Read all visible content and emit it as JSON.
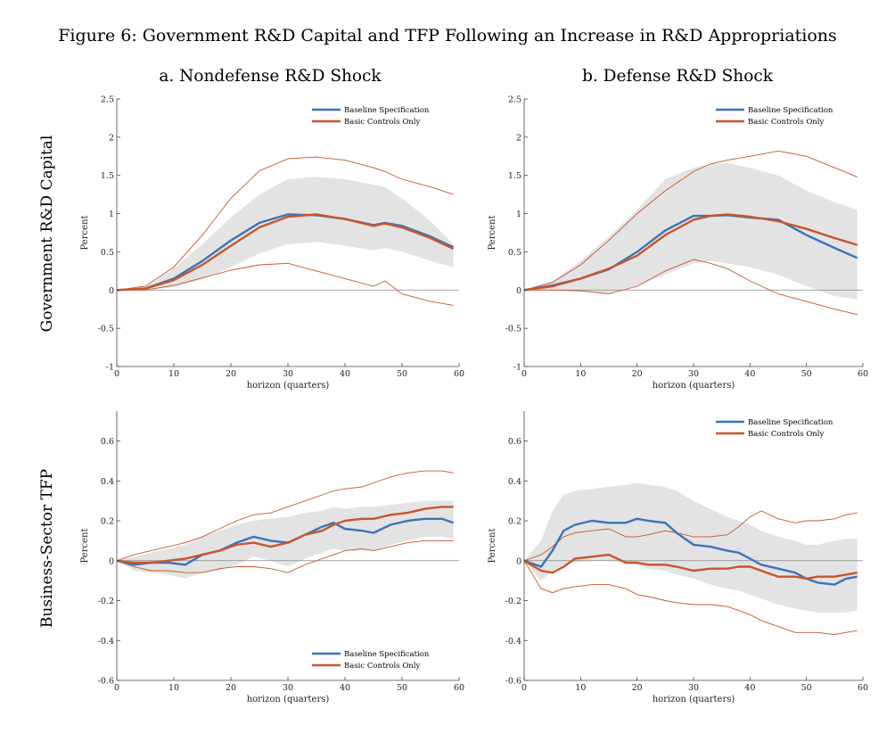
{
  "figure": {
    "title": "Figure 6: Government R&D Capital and TFP Following an Increase in R&D Appropriations",
    "columns": [
      "a. Nondefense R&D Shock",
      "b. Defense R&D Shock"
    ],
    "rows": [
      "Government R&D Capital",
      "Business-Sector TFP"
    ]
  },
  "colors": {
    "baseline": "#3b73b9",
    "basic": "#c8552b",
    "band": "#e3e3e3",
    "zero": "#888888",
    "axis": "#444444"
  },
  "chart_data": [
    {
      "id": "gov-nondefense",
      "type": "line",
      "xlabel": "horizon (quarters)",
      "ylabel": "Percent",
      "xlim": [
        0,
        60
      ],
      "ylim": [
        -1,
        2.5
      ],
      "xticks": [
        0,
        10,
        20,
        30,
        40,
        50,
        60
      ],
      "yticks": [
        -1,
        -0.5,
        0,
        0.5,
        1,
        1.5,
        2,
        2.5
      ],
      "ytick_labels": [
        "-1",
        "-0.5",
        "0",
        "0.5",
        "1",
        "1.5",
        "2",
        "2.5"
      ],
      "legend": "top-right",
      "x": [
        0,
        5,
        10,
        15,
        20,
        25,
        30,
        35,
        40,
        45,
        47,
        50,
        55,
        59
      ],
      "series": [
        {
          "name": "Baseline Specification",
          "values": [
            0,
            0.02,
            0.15,
            0.38,
            0.65,
            0.88,
            0.99,
            0.98,
            0.93,
            0.85,
            0.88,
            0.84,
            0.7,
            0.56
          ]
        },
        {
          "name": "Basic Controls Only",
          "values": [
            0,
            0.02,
            0.13,
            0.33,
            0.58,
            0.82,
            0.96,
            0.99,
            0.93,
            0.84,
            0.87,
            0.82,
            0.68,
            0.54
          ]
        }
      ],
      "band": {
        "upper": [
          0,
          0.04,
          0.28,
          0.6,
          0.95,
          1.25,
          1.45,
          1.48,
          1.45,
          1.38,
          1.35,
          1.2,
          0.9,
          0.6
        ],
        "lower": [
          0,
          0,
          0.04,
          0.14,
          0.3,
          0.48,
          0.6,
          0.63,
          0.58,
          0.52,
          0.55,
          0.5,
          0.38,
          0.3
        ]
      },
      "bounds": {
        "upper": [
          0,
          0.05,
          0.3,
          0.72,
          1.2,
          1.56,
          1.72,
          1.74,
          1.7,
          1.6,
          1.55,
          1.45,
          1.35,
          1.25
        ],
        "lower": [
          0,
          0,
          0.06,
          0.16,
          0.26,
          0.33,
          0.35,
          0.25,
          0.15,
          0.05,
          0.12,
          -0.05,
          -0.15,
          -0.2
        ]
      }
    },
    {
      "id": "gov-defense",
      "type": "line",
      "xlabel": "horizon (quarters)",
      "ylabel": "Percent",
      "xlim": [
        0,
        60
      ],
      "ylim": [
        -1,
        2.5
      ],
      "xticks": [
        0,
        10,
        20,
        30,
        40,
        50,
        60
      ],
      "yticks": [
        -1,
        -0.5,
        0,
        0.5,
        1,
        1.5,
        2,
        2.5
      ],
      "ytick_labels": [
        "-1",
        "-0.5",
        "0",
        "0.5",
        "1",
        "1.5",
        "2",
        "2.5"
      ],
      "legend": "top-right",
      "x": [
        0,
        5,
        10,
        15,
        20,
        25,
        30,
        33,
        36,
        40,
        45,
        50,
        55,
        59
      ],
      "series": [
        {
          "name": "Baseline Specification",
          "values": [
            0,
            0.06,
            0.15,
            0.27,
            0.5,
            0.78,
            0.97,
            0.97,
            0.98,
            0.95,
            0.92,
            0.72,
            0.55,
            0.42
          ]
        },
        {
          "name": "Basic Controls Only",
          "values": [
            0,
            0.05,
            0.15,
            0.28,
            0.45,
            0.72,
            0.92,
            0.97,
            0.99,
            0.96,
            0.9,
            0.8,
            0.68,
            0.59
          ]
        }
      ],
      "band": {
        "upper": [
          0,
          0.12,
          0.38,
          0.7,
          1.05,
          1.45,
          1.6,
          1.65,
          1.66,
          1.6,
          1.5,
          1.3,
          1.15,
          1.05
        ],
        "lower": [
          0,
          0,
          -0.02,
          -0.05,
          0.05,
          0.2,
          0.35,
          0.38,
          0.35,
          0.3,
          0.2,
          0.05,
          -0.08,
          -0.12
        ]
      },
      "bounds": {
        "upper": [
          0,
          0.1,
          0.33,
          0.65,
          1.0,
          1.3,
          1.55,
          1.65,
          1.7,
          1.75,
          1.82,
          1.75,
          1.6,
          1.48
        ],
        "lower": [
          0,
          0,
          -0.01,
          -0.05,
          0.05,
          0.25,
          0.4,
          0.35,
          0.28,
          0.12,
          -0.05,
          -0.15,
          -0.25,
          -0.32
        ]
      }
    },
    {
      "id": "tfp-nondefense",
      "type": "line",
      "xlabel": "horizon (quarters)",
      "ylabel": "Percent",
      "xlim": [
        0,
        60
      ],
      "ylim": [
        -0.6,
        0.75
      ],
      "xticks": [
        0,
        10,
        20,
        30,
        40,
        50,
        60
      ],
      "yticks": [
        -0.6,
        -0.4,
        -0.2,
        0,
        0.2,
        0.4,
        0.6
      ],
      "ytick_labels": [
        "-0.6",
        "-0.4",
        "-0.2",
        "0",
        "0.2",
        "0.4",
        "0.6"
      ],
      "legend": "bottom-right",
      "x": [
        0,
        3,
        6,
        9,
        12,
        15,
        18,
        21,
        24,
        27,
        30,
        33,
        36,
        38,
        40,
        43,
        45,
        48,
        51,
        54,
        57,
        59
      ],
      "series": [
        {
          "name": "Baseline Specification",
          "values": [
            0,
            -0.02,
            -0.01,
            -0.01,
            -0.02,
            0.03,
            0.05,
            0.09,
            0.12,
            0.1,
            0.09,
            0.13,
            0.17,
            0.19,
            0.16,
            0.15,
            0.14,
            0.18,
            0.2,
            0.21,
            0.21,
            0.19
          ]
        },
        {
          "name": "Basic Controls Only",
          "values": [
            0,
            -0.01,
            -0.01,
            0.0,
            0.01,
            0.03,
            0.05,
            0.08,
            0.09,
            0.07,
            0.09,
            0.13,
            0.15,
            0.18,
            0.2,
            0.21,
            0.21,
            0.23,
            0.24,
            0.26,
            0.27,
            0.27
          ]
        }
      ],
      "band": {
        "upper": [
          0,
          0.02,
          0.04,
          0.06,
          0.08,
          0.12,
          0.15,
          0.18,
          0.2,
          0.21,
          0.22,
          0.24,
          0.25,
          0.27,
          0.26,
          0.27,
          0.27,
          0.28,
          0.29,
          0.3,
          0.3,
          0.3
        ],
        "lower": [
          0,
          -0.05,
          -0.06,
          -0.07,
          -0.09,
          -0.06,
          -0.05,
          -0.02,
          0.02,
          0.0,
          -0.03,
          0.01,
          0.04,
          0.06,
          0.05,
          0.05,
          0.05,
          0.08,
          0.1,
          0.12,
          0.12,
          0.11
        ]
      },
      "bounds": {
        "upper": [
          0,
          0.03,
          0.05,
          0.07,
          0.09,
          0.12,
          0.16,
          0.2,
          0.23,
          0.24,
          0.27,
          0.3,
          0.33,
          0.35,
          0.36,
          0.37,
          0.39,
          0.42,
          0.44,
          0.45,
          0.45,
          0.44
        ],
        "lower": [
          0,
          -0.03,
          -0.05,
          -0.05,
          -0.06,
          -0.06,
          -0.04,
          -0.03,
          -0.03,
          -0.04,
          -0.06,
          -0.02,
          0.01,
          0.03,
          0.05,
          0.06,
          0.05,
          0.07,
          0.09,
          0.1,
          0.1,
          0.1
        ]
      }
    },
    {
      "id": "tfp-defense",
      "type": "line",
      "xlabel": "horizon (quarters)",
      "ylabel": "Percent",
      "xlim": [
        0,
        60
      ],
      "ylim": [
        -0.6,
        0.75
      ],
      "xticks": [
        0,
        10,
        20,
        30,
        40,
        50,
        60
      ],
      "yticks": [
        -0.6,
        -0.4,
        -0.2,
        0,
        0.2,
        0.4,
        0.6
      ],
      "ytick_labels": [
        "-0.6",
        "-0.4",
        "-0.2",
        "0",
        "0.2",
        "0.4",
        "0.6"
      ],
      "legend": "top-right",
      "x": [
        0,
        3,
        5,
        7,
        9,
        12,
        15,
        18,
        20,
        22,
        25,
        27,
        30,
        33,
        36,
        38,
        40,
        42,
        45,
        48,
        50,
        52,
        55,
        57,
        59
      ],
      "series": [
        {
          "name": "Baseline Specification",
          "values": [
            0,
            -0.03,
            0.05,
            0.15,
            0.18,
            0.2,
            0.19,
            0.19,
            0.21,
            0.2,
            0.19,
            0.14,
            0.08,
            0.07,
            0.05,
            0.04,
            0.01,
            -0.02,
            -0.04,
            -0.06,
            -0.09,
            -0.11,
            -0.12,
            -0.09,
            -0.08
          ]
        },
        {
          "name": "Basic Controls Only",
          "values": [
            0,
            -0.05,
            -0.06,
            -0.03,
            0.01,
            0.02,
            0.03,
            -0.01,
            -0.01,
            -0.02,
            -0.02,
            -0.03,
            -0.05,
            -0.04,
            -0.04,
            -0.03,
            -0.03,
            -0.05,
            -0.08,
            -0.08,
            -0.09,
            -0.08,
            -0.08,
            -0.07,
            -0.06
          ]
        }
      ],
      "band": {
        "upper": [
          0,
          0.1,
          0.25,
          0.33,
          0.35,
          0.36,
          0.37,
          0.38,
          0.39,
          0.38,
          0.37,
          0.35,
          0.3,
          0.26,
          0.22,
          0.2,
          0.18,
          0.15,
          0.12,
          0.1,
          0.08,
          0.08,
          0.1,
          0.11,
          0.11
        ],
        "lower": [
          0,
          -0.1,
          -0.05,
          -0.02,
          -0.01,
          0.0,
          0.0,
          -0.01,
          -0.02,
          -0.04,
          -0.05,
          -0.07,
          -0.09,
          -0.12,
          -0.14,
          -0.15,
          -0.17,
          -0.19,
          -0.22,
          -0.24,
          -0.25,
          -0.26,
          -0.26,
          -0.26,
          -0.25
        ]
      },
      "bounds": {
        "upper": [
          0,
          0.03,
          0.07,
          0.12,
          0.14,
          0.15,
          0.16,
          0.12,
          0.12,
          0.13,
          0.15,
          0.14,
          0.12,
          0.12,
          0.13,
          0.17,
          0.22,
          0.25,
          0.21,
          0.19,
          0.2,
          0.2,
          0.21,
          0.23,
          0.24
        ],
        "lower": [
          0,
          -0.14,
          -0.16,
          -0.14,
          -0.13,
          -0.12,
          -0.12,
          -0.14,
          -0.17,
          -0.18,
          -0.2,
          -0.21,
          -0.22,
          -0.22,
          -0.23,
          -0.25,
          -0.27,
          -0.3,
          -0.33,
          -0.36,
          -0.36,
          -0.36,
          -0.37,
          -0.36,
          -0.35
        ]
      }
    }
  ]
}
